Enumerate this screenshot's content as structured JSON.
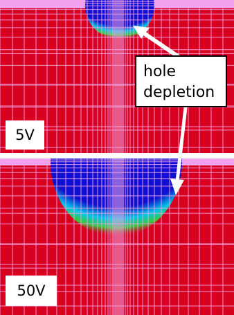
{
  "panels": [
    {
      "id": "top",
      "voltage_label": "5V",
      "depletion_depth_fraction": 0.22
    },
    {
      "id": "bottom",
      "voltage_label": "50V",
      "depletion_depth_fraction": 0.48
    }
  ],
  "annotation": {
    "line1": "hole",
    "line2": "depletion"
  },
  "colors": {
    "background": "#d8001f",
    "grid": "#f3a6e6",
    "depletion_core": "#0a0ae0",
    "depletion_edge_cyan": "#00c8e8",
    "depletion_edge_green": "#38c838",
    "surface_band": "#f0a0f0",
    "arrow": "#ffffff"
  }
}
